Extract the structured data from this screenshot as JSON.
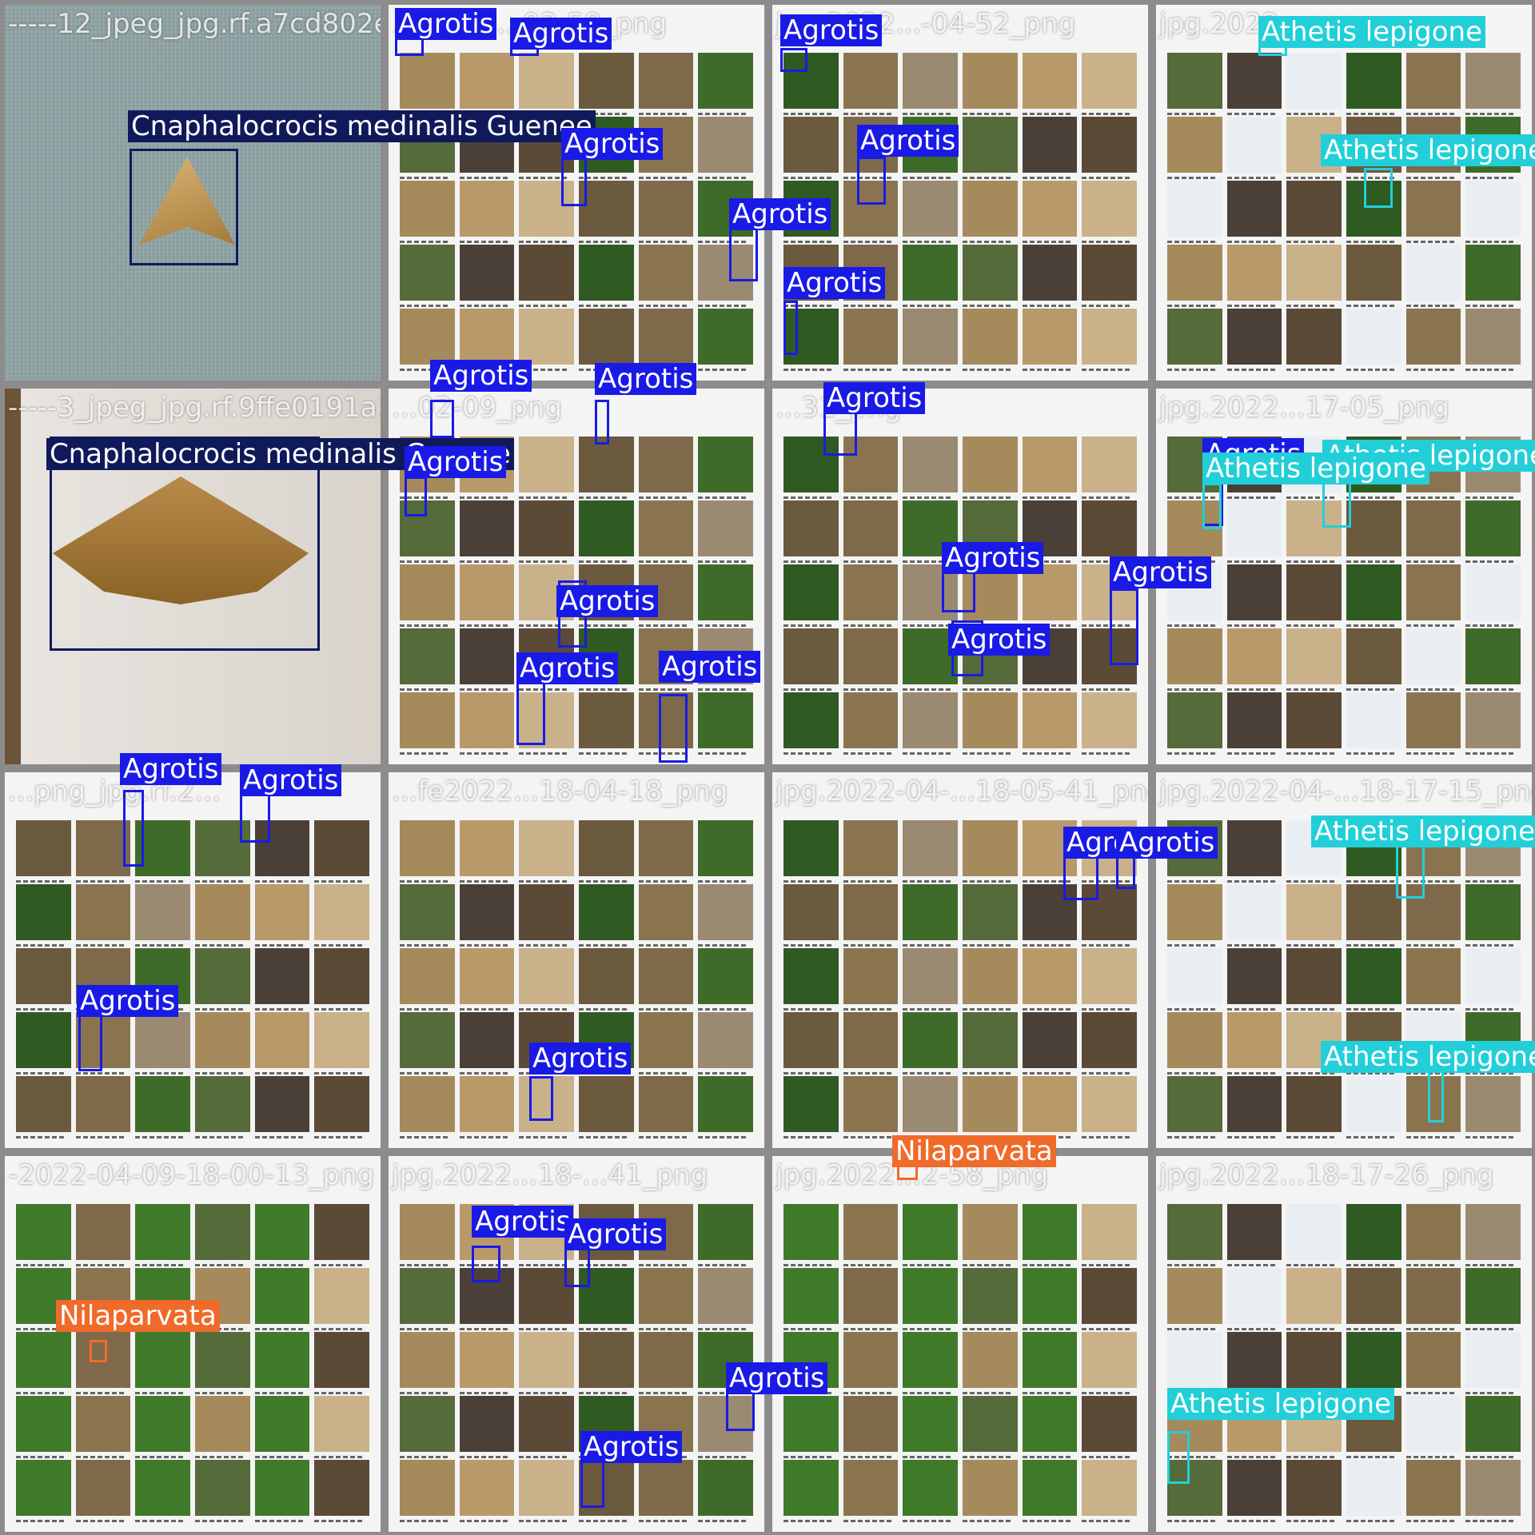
{
  "colors": {
    "agrotis": "#1a1ae6",
    "cnaphalocrocis": "#101a5a",
    "athetis": "#22cfd8",
    "nilaparvata": "#f06a2a"
  },
  "tiles": [
    {
      "filename": "-----12_jpeg_jpg.rf.a7cd802e"
    },
    {
      "filename": "...2022-...03-59_png"
    },
    {
      "filename": "jpg.2022...-04-52_png"
    },
    {
      "filename": "jpg.2022...png"
    },
    {
      "filename": "-----3_jpeg_jpg.rf.9ffe0191a1"
    },
    {
      "filename": "...02-09_png"
    },
    {
      "filename": "...31_png"
    },
    {
      "filename": "jpg.2022...17-05_png"
    },
    {
      "filename": "...png_jpg.rf.2..."
    },
    {
      "filename": "...fe2022...18-04-18_png"
    },
    {
      "filename": "jpg.2022-04-...18-05-41_png"
    },
    {
      "filename": "jpg.2022-04-...18-17-15_png"
    },
    {
      "filename": "-2022-04-09-18-00-13_png"
    },
    {
      "filename": "jpg.2022...18-...41_png"
    },
    {
      "filename": "jpg.2022...2-58_png"
    },
    {
      "filename": "jpg.2022...18-17-26_png"
    }
  ],
  "detections": [
    {
      "label": "Cnaphalocrocis medinalis Guenee",
      "cls": "cnaphalocrocis"
    },
    {
      "label": "Agrotis",
      "cls": "agrotis"
    },
    {
      "label": "Agrotis",
      "cls": "agrotis"
    },
    {
      "label": "Agrotis",
      "cls": "agrotis"
    },
    {
      "label": "Agrotis",
      "cls": "agrotis"
    },
    {
      "label": "Agrotis",
      "cls": "agrotis"
    },
    {
      "label": "Agrotis",
      "cls": "agrotis"
    },
    {
      "label": "Agrotis",
      "cls": "agrotis"
    },
    {
      "label": "Athetis lepigone",
      "cls": "athetis"
    },
    {
      "label": "Athetis lepigone",
      "cls": "athetis"
    },
    {
      "label": "Agrotis",
      "cls": "agrotis"
    },
    {
      "label": "Agrotis",
      "cls": "agrotis"
    },
    {
      "label": "Cnaphalocrocis medinalis Guenee",
      "cls": "cnaphalocrocis"
    },
    {
      "label": "Agrotis",
      "cls": "agrotis"
    },
    {
      "label": "Agrotis",
      "cls": "agrotis"
    },
    {
      "label": "Agrotis",
      "cls": "agrotis"
    },
    {
      "label": "Agrotis",
      "cls": "agrotis"
    },
    {
      "label": "Agrotis",
      "cls": "agrotis"
    },
    {
      "label": "Agrotis",
      "cls": "agrotis"
    },
    {
      "label": "Agrotis",
      "cls": "agrotis"
    },
    {
      "label": "Agrotis",
      "cls": "agrotis"
    },
    {
      "label": "Agrotis",
      "cls": "agrotis"
    },
    {
      "label": "Athetis lepigone",
      "cls": "athetis"
    },
    {
      "label": "Athetis lepigone",
      "cls": "athetis"
    },
    {
      "label": "Agrotis",
      "cls": "agrotis"
    },
    {
      "label": "Agrotis",
      "cls": "agrotis"
    },
    {
      "label": "Agrotis",
      "cls": "agrotis"
    },
    {
      "label": "Agrotis",
      "cls": "agrotis"
    },
    {
      "label": "Agrotis",
      "cls": "agrotis"
    },
    {
      "label": "Agrotis",
      "cls": "agrotis"
    },
    {
      "label": "Athetis lepigone",
      "cls": "athetis"
    },
    {
      "label": "Athetis lepigone",
      "cls": "athetis"
    },
    {
      "label": "Nilaparvata",
      "cls": "nilaparvata"
    },
    {
      "label": "Agrotis",
      "cls": "agrotis"
    },
    {
      "label": "Agrotis",
      "cls": "agrotis"
    },
    {
      "label": "Agrotis",
      "cls": "agrotis"
    },
    {
      "label": "Agrotis",
      "cls": "agrotis"
    },
    {
      "label": "Nilaparvata",
      "cls": "nilaparvata"
    },
    {
      "label": "Athetis lepigone",
      "cls": "athetis"
    }
  ]
}
